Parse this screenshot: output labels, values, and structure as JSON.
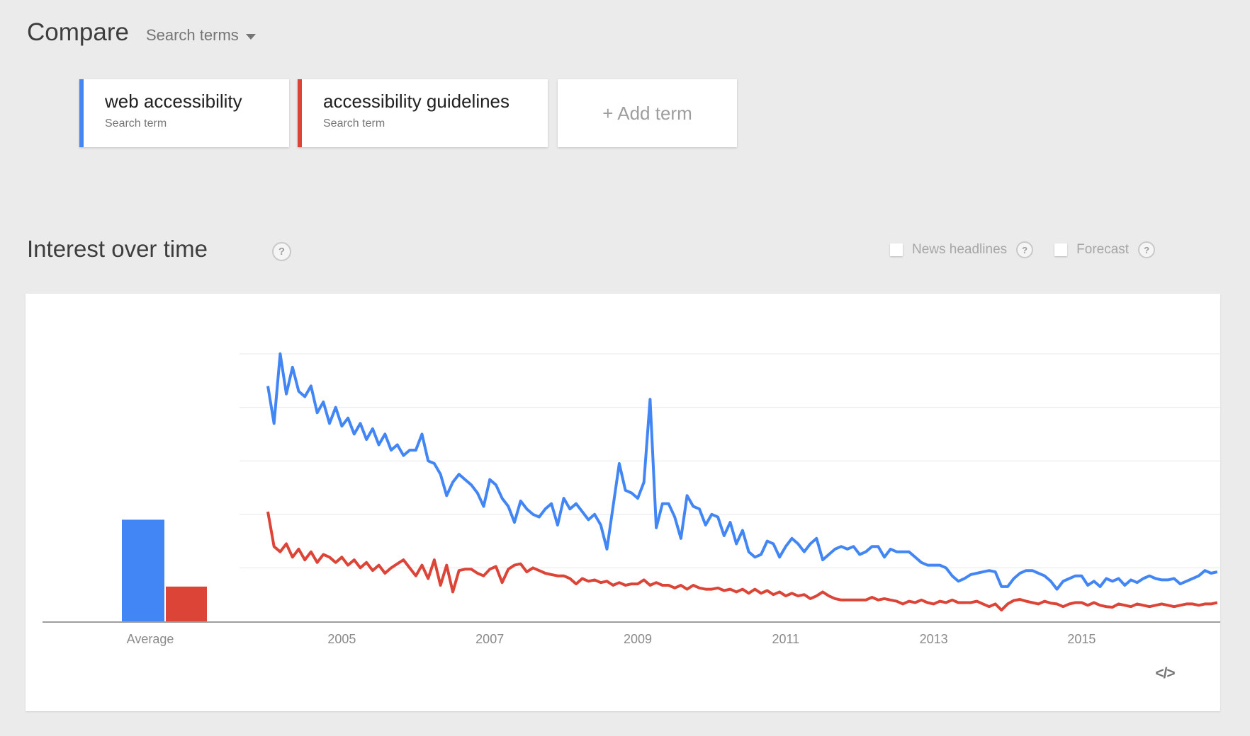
{
  "page": {
    "background": "#ebebeb"
  },
  "header": {
    "title": "Compare",
    "subtitle": "Search terms"
  },
  "terms": [
    {
      "label": "web accessibility",
      "type_label": "Search term",
      "color": "#4285f4"
    },
    {
      "label": "accessibility guidelines",
      "type_label": "Search term",
      "color": "#db4437"
    }
  ],
  "add_term": {
    "label": "+ Add term"
  },
  "section": {
    "title": "Interest over time",
    "help_icon": "?",
    "options": [
      {
        "label": "News headlines",
        "checked": false,
        "help_icon": "?"
      },
      {
        "label": "Forecast",
        "checked": false,
        "help_icon": "?"
      }
    ]
  },
  "embed": {
    "icon_label": "</>"
  },
  "chart_data": {
    "type": "line",
    "title": "Interest over time",
    "x_axis": {
      "tick_labels": [
        "2005",
        "2007",
        "2009",
        "2011",
        "2013",
        "2015"
      ],
      "start_year": 2004,
      "range_months": [
        "2004-01",
        "2016-11"
      ]
    },
    "y_axis": {
      "min": 0,
      "max": 100,
      "gridline_values": [
        20,
        40,
        60,
        80,
        100
      ],
      "tick_labels_visible": false
    },
    "grid_color": "#e8e8e8",
    "axis_color": "#9e9e9e",
    "label_color": "#8a8a8a",
    "average_bars": {
      "label": "Average",
      "values": [
        {
          "name": "web accessibility",
          "value": 38
        },
        {
          "name": "accessibility guidelines",
          "value": 13
        }
      ]
    },
    "series": [
      {
        "name": "web accessibility",
        "color": "#4285f4",
        "values": [
          88,
          74,
          100,
          85,
          95,
          86,
          84,
          88,
          78,
          82,
          74,
          80,
          73,
          76,
          70,
          74,
          68,
          72,
          66,
          70,
          64,
          66,
          62,
          64,
          64,
          70,
          60,
          59,
          55,
          47,
          52,
          55,
          53,
          51,
          48,
          43,
          53,
          51,
          46,
          43,
          37,
          45,
          42,
          40,
          39,
          42,
          44,
          36,
          46,
          42,
          44,
          41,
          38,
          40,
          36,
          27,
          43,
          59,
          49,
          48,
          46,
          52,
          83,
          35,
          44,
          44,
          39,
          31,
          47,
          43,
          42,
          36,
          40,
          39,
          32,
          37,
          29,
          34,
          26,
          24,
          25,
          30,
          29,
          24,
          28,
          31,
          29,
          26,
          29,
          31,
          23,
          25,
          27,
          28,
          27,
          28,
          25,
          26,
          28,
          28,
          24,
          27,
          26,
          26,
          26,
          24,
          22,
          21,
          21,
          21,
          20,
          17,
          15,
          16,
          17.5,
          18,
          18.5,
          19,
          18.5,
          13,
          13,
          16,
          18,
          19,
          19,
          18,
          17,
          15,
          12,
          15,
          16,
          17,
          17,
          13.5,
          15,
          13,
          16,
          15,
          16,
          13.5,
          15.5,
          14.5,
          16,
          17,
          16,
          15.5,
          15.5,
          16,
          14,
          15,
          16,
          17,
          19,
          18,
          18.5
        ]
      },
      {
        "name": "accessibility guidelines",
        "color": "#db4437",
        "values": [
          41,
          28,
          26,
          29,
          24,
          27,
          23,
          26,
          22,
          25,
          24,
          22,
          24,
          21,
          23,
          20,
          22,
          19,
          21,
          18,
          20,
          21.5,
          23,
          20,
          17,
          21,
          16,
          23,
          13.5,
          21,
          11,
          19,
          19.5,
          19.5,
          18,
          17,
          19.5,
          20.5,
          14.5,
          19.5,
          21,
          21.5,
          18.5,
          20,
          19,
          18,
          17.5,
          17,
          17,
          16,
          14,
          16,
          15,
          15.5,
          14.5,
          15,
          13.5,
          14.5,
          13.5,
          14,
          14,
          15.5,
          13.5,
          14.5,
          13.5,
          13.5,
          12.5,
          13.5,
          12,
          13.5,
          12.5,
          12,
          12,
          12.5,
          11.5,
          12,
          11,
          12,
          10.5,
          12,
          10.5,
          11.5,
          10,
          11,
          9.5,
          10.5,
          9.5,
          10,
          8.5,
          9.5,
          11,
          9.5,
          8.5,
          8,
          8,
          8,
          8,
          8,
          9,
          8,
          8.5,
          8,
          7.5,
          6.5,
          7.5,
          7,
          8,
          7,
          6.5,
          7.5,
          7,
          8,
          7,
          7,
          7,
          7.5,
          6.5,
          5.5,
          6.5,
          4.2,
          6.5,
          7.8,
          8.2,
          7.5,
          7,
          6.5,
          7.5,
          6.8,
          6.5,
          5.5,
          6.5,
          7,
          7,
          6,
          7,
          6,
          5.5,
          5.3,
          6.5,
          6,
          5.5,
          6.5,
          6,
          5.5,
          6,
          6.5,
          6,
          5.5,
          6,
          6.5,
          6.5,
          6,
          6.5,
          6.5,
          7
        ]
      }
    ]
  }
}
